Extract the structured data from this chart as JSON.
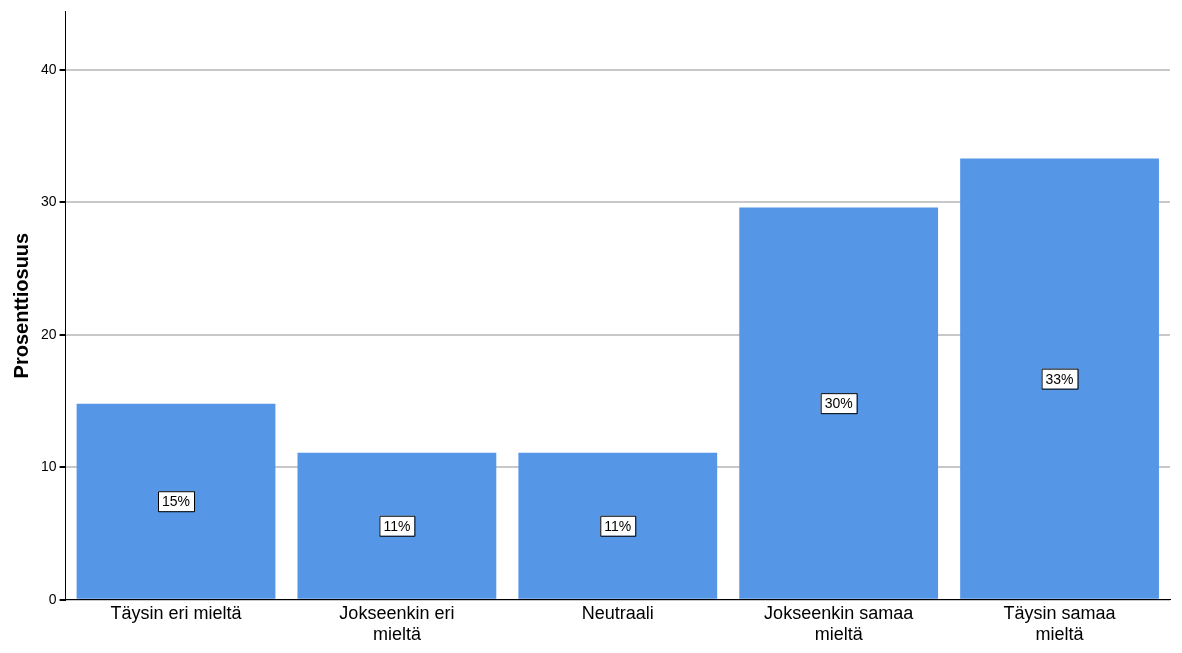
{
  "chart_data": {
    "type": "bar",
    "ylabel": "Prosenttiosuus",
    "categories": [
      "Täysin eri mieltä",
      "Jokseenkin eri mieltä",
      "Neutraali",
      "Jokseenkin samaa mieltä",
      "Täysin samaa mieltä"
    ],
    "values": [
      14.8,
      11.1,
      11.1,
      29.6,
      33.3
    ],
    "color": "#5596e6",
    "value_labels": [
      "15%",
      "11%",
      "11%",
      "30%",
      "33%"
    ],
    "ylim": [
      0,
      44.4
    ],
    "yticks": [
      0,
      10,
      20,
      30,
      40
    ],
    "grid": "y",
    "legend": false
  }
}
